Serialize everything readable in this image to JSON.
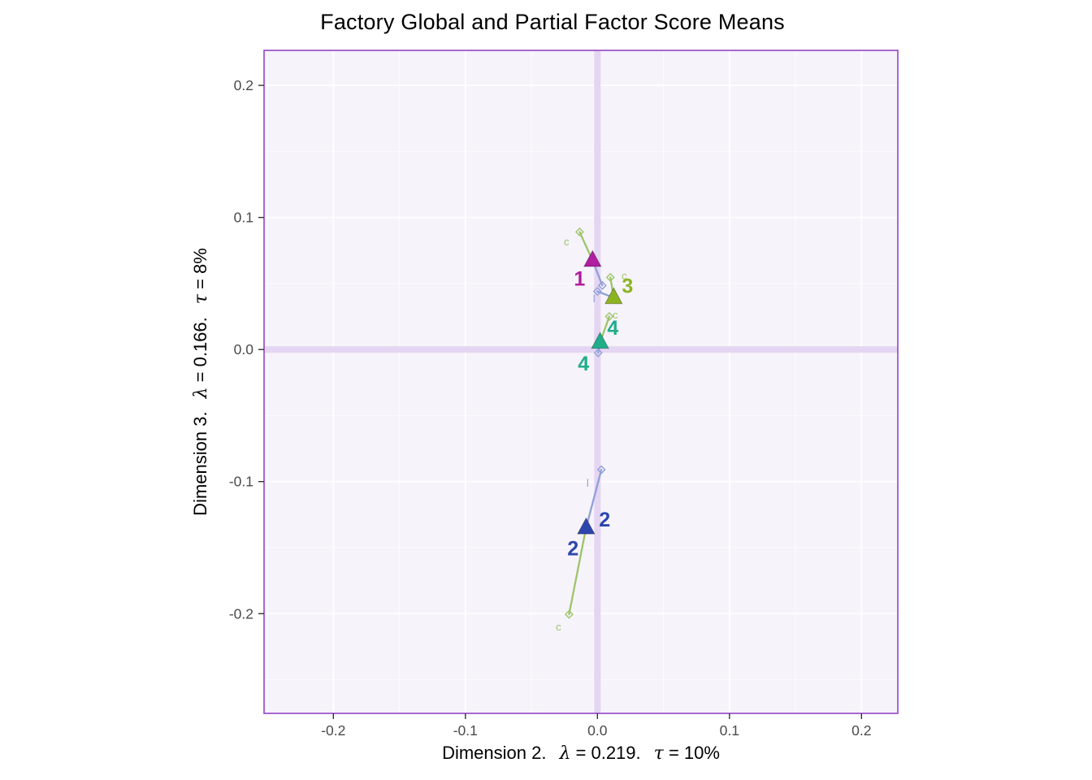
{
  "chart_data": {
    "type": "scatter",
    "title": "Factory Global and Partial Factor Score Means",
    "xlabel": "Dimension 2.  λ = 0.219.  τ = 10%",
    "ylabel": "Dimension 3.  λ = 0.166.  τ = 8%",
    "x_axis_parts": {
      "prefix": "Dimension 2.",
      "lambda_sym": "λ",
      "lambda_eq": " = 0.219.",
      "tau_sym": "τ",
      "tau_eq": " = 10%"
    },
    "y_axis_parts": {
      "prefix": "Dimension 3.",
      "lambda_sym": "λ",
      "lambda_eq": " = 0.166.",
      "tau_sym": "τ",
      "tau_eq": " = 8%"
    },
    "xlim": [
      -0.2525,
      0.2275
    ],
    "ylim": [
      -0.2755,
      0.2265
    ],
    "x_ticks": {
      "values": [
        -0.2,
        -0.1,
        0.0,
        0.1,
        0.2
      ],
      "labels": [
        "-0.2",
        "-0.1",
        "0.0",
        "0.1",
        "0.2"
      ]
    },
    "y_ticks": {
      "values": [
        -0.2,
        -0.1,
        0.0,
        0.1,
        0.2
      ],
      "labels": [
        "-0.2",
        "-0.1",
        "0.0",
        "0.1",
        "0.2"
      ]
    },
    "x_minor": [
      -0.25,
      -0.15,
      -0.05,
      0.05,
      0.15
    ],
    "y_minor": [
      -0.25,
      -0.15,
      -0.05,
      0.05,
      0.15
    ],
    "grid": true,
    "legend_position": "none",
    "style": {
      "panel_bg": "#f6f3fa",
      "grid_major": "#ffffff",
      "grid_minor": "#ffffff",
      "crosshair": "#e4d5f2",
      "border": "#9345c6",
      "tick_color": "#333333",
      "tick_text": "#4a4a4a",
      "title_color": "#000000"
    },
    "tables": {
      "c": {
        "label": "c",
        "color": "#9ec46a"
      },
      "l": {
        "label": "l",
        "color": "#8fa0d8"
      }
    },
    "groups": [
      {
        "id": "1",
        "color": "#b01da0",
        "global": {
          "x": -0.0037,
          "y": 0.0675
        },
        "group_labels": [
          {
            "text": "1",
            "x": -0.0135,
            "y": 0.0534
          }
        ],
        "partials": [
          {
            "table": "c",
            "x": -0.0135,
            "y": 0.089,
            "label": {
              "text": "c",
              "x": -0.0234,
              "y": 0.0816
            }
          },
          {
            "table": "l",
            "x": 0.0037,
            "y": 0.0485
          }
        ]
      },
      {
        "id": "2",
        "color": "#2d46ae",
        "global": {
          "x": -0.0086,
          "y": -0.135
        },
        "group_labels": [
          {
            "text": "2",
            "x": 0.0055,
            "y": -0.129
          },
          {
            "text": "2",
            "x": -0.0185,
            "y": -0.151
          }
        ],
        "partials": [
          {
            "table": "l",
            "x": 0.003,
            "y": -0.091,
            "label": {
              "text": "l",
              "x": -0.0074,
              "y": -0.1012
            }
          },
          {
            "table": "c",
            "x": -0.0215,
            "y": -0.2005,
            "label": {
              "text": "c",
              "x": -0.0295,
              "y": -0.21
            }
          }
        ]
      },
      {
        "id": "3",
        "color": "#8cb41f",
        "global": {
          "x": 0.0123,
          "y": 0.0393
        },
        "group_labels": [
          {
            "text": "3",
            "x": 0.0228,
            "y": 0.0479
          }
        ],
        "partials": [
          {
            "table": "c",
            "x": 0.0098,
            "y": 0.0546,
            "label": {
              "text": "c",
              "x": 0.0203,
              "y": 0.0558
            }
          },
          {
            "table": "l",
            "x": 0.0,
            "y": 0.044,
            "label": {
              "text": "l",
              "x": -0.0025,
              "y": 0.0387
            }
          }
        ]
      },
      {
        "id": "4",
        "color": "#1fae8a",
        "global": {
          "x": 0.002,
          "y": 0.0055
        },
        "group_labels": [
          {
            "text": "4",
            "x": 0.0117,
            "y": 0.016
          },
          {
            "text": "4",
            "x": -0.0105,
            "y": -0.011
          }
        ],
        "partials": [
          {
            "table": "c",
            "x": 0.009,
            "y": 0.025,
            "label": {
              "text": "c",
              "x": 0.0135,
              "y": 0.0264
            }
          },
          {
            "table": "l",
            "x": 0.0006,
            "y": -0.0025
          }
        ]
      }
    ]
  }
}
